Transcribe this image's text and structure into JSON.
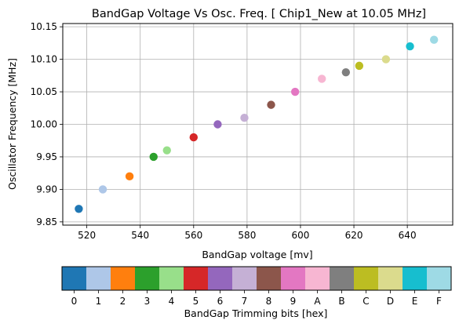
{
  "chart_data": {
    "type": "scatter",
    "title": "BandGap Voltage Vs Osc. Freq. [ Chip1_New at 10.05 MHz]",
    "xlabel": "BandGap voltage [mv]",
    "ylabel": "Oscillator Frequency [MHz]",
    "xlim": [
      511,
      657
    ],
    "ylim": [
      9.845,
      10.155
    ],
    "x_ticks": [
      520,
      540,
      560,
      580,
      600,
      620,
      640
    ],
    "x_tick_labels": [
      "520",
      "540",
      "560",
      "580",
      "600",
      "620",
      "640"
    ],
    "y_ticks": [
      9.85,
      9.9,
      9.95,
      10.0,
      10.05,
      10.1,
      10.15
    ],
    "y_tick_labels": [
      "9.85",
      "9.90",
      "9.95",
      "10.00",
      "10.05",
      "10.10",
      "10.15"
    ],
    "grid": true,
    "points": [
      {
        "x": 517,
        "y": 9.87,
        "color": "#1f77b4"
      },
      {
        "x": 526,
        "y": 9.9,
        "color": "#aec7e8"
      },
      {
        "x": 536,
        "y": 9.92,
        "color": "#ff7f0e"
      },
      {
        "x": 545,
        "y": 9.95,
        "color": "#2ca02c"
      },
      {
        "x": 550,
        "y": 9.96,
        "color": "#98df8a"
      },
      {
        "x": 560,
        "y": 9.98,
        "color": "#d62728"
      },
      {
        "x": 569,
        "y": 10.0,
        "color": "#9467bd"
      },
      {
        "x": 579,
        "y": 10.01,
        "color": "#c5b0d5"
      },
      {
        "x": 589,
        "y": 10.03,
        "color": "#8c564b"
      },
      {
        "x": 598,
        "y": 10.05,
        "color": "#e377c2"
      },
      {
        "x": 608,
        "y": 10.07,
        "color": "#f7b6d2"
      },
      {
        "x": 617,
        "y": 10.08,
        "color": "#7f7f7f"
      },
      {
        "x": 622,
        "y": 10.09,
        "color": "#bcbd22"
      },
      {
        "x": 632,
        "y": 10.1,
        "color": "#dbdb8d"
      },
      {
        "x": 641,
        "y": 10.12,
        "color": "#17becf"
      },
      {
        "x": 650,
        "y": 10.13,
        "color": "#9edae5"
      }
    ],
    "colorbar": {
      "label": "BandGap Trimming bits [hex]",
      "labels": [
        "0",
        "1",
        "2",
        "3",
        "4",
        "5",
        "6",
        "7",
        "8",
        "9",
        "A",
        "B",
        "C",
        "D",
        "E",
        "F"
      ],
      "colors": [
        "#1f77b4",
        "#aec7e8",
        "#ff7f0e",
        "#2ca02c",
        "#98df8a",
        "#d62728",
        "#9467bd",
        "#c5b0d5",
        "#8c564b",
        "#e377c2",
        "#f7b6d2",
        "#7f7f7f",
        "#bcbd22",
        "#dbdb8d",
        "#17becf",
        "#9edae5"
      ]
    }
  }
}
